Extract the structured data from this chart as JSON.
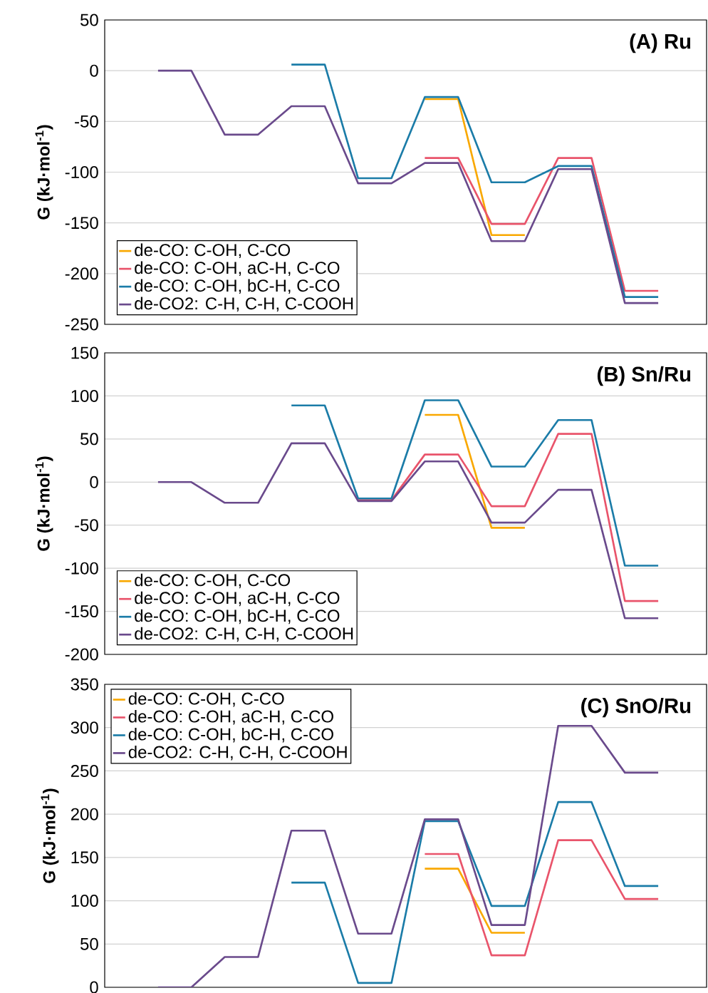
{
  "chart_data": [
    {
      "type": "line",
      "title": "(A) Ru",
      "ylabel": "G (kJ·mol$^{-1}$)",
      "categories": [
        null,
        null,
        null,
        null,
        null,
        null,
        null,
        null,
        null,
        null,
        null,
        null,
        null,
        null,
        null,
        null
      ],
      "series": [
        {
          "name": "de-CO: C-OH, C-CO",
          "color": "#f9a800",
          "values": [
            null,
            null,
            null,
            null,
            null,
            null,
            null,
            null,
            -28,
            -28,
            -162,
            -162,
            null,
            null,
            null,
            null
          ]
        },
        {
          "name": "de-CO: C-OH, aC-H, C-CO",
          "color": "#e9546b",
          "values": [
            null,
            null,
            null,
            null,
            null,
            null,
            null,
            null,
            -86,
            -86,
            -151,
            -151,
            -86,
            -86,
            -217,
            -217
          ]
        },
        {
          "name": "de-CO: C-OH, bC-H, C-CO",
          "color": "#1b7ca8",
          "values": [
            null,
            null,
            null,
            null,
            6,
            6,
            -106,
            -106,
            -26,
            -26,
            -110,
            -110,
            -94,
            -94,
            -223,
            -223
          ]
        },
        {
          "name": "de-CO2: C-H, C-H, C-COOH",
          "color": "#6a4a8c",
          "values": [
            0,
            0,
            -63,
            -63,
            -35,
            -35,
            -111,
            -111,
            -91,
            -91,
            -168,
            -168,
            -97,
            -97,
            -229,
            -229
          ]
        }
      ],
      "ylim": [
        -250,
        50
      ],
      "yticks": [
        -250,
        -200,
        -150,
        -100,
        -50,
        0,
        50
      ],
      "grid": "y",
      "legend": "bottom left",
      "tick_labels": "y"
    },
    {
      "type": "line",
      "title": "(B) Sn/Ru",
      "ylabel": "G (kJ·mol$^{-1}$)",
      "categories": [
        null,
        null,
        null,
        null,
        null,
        null,
        null,
        null,
        null,
        null,
        null,
        null,
        null,
        null,
        null,
        null
      ],
      "series": [
        {
          "name": "de-CO: C-OH, C-CO",
          "color": "#f9a800",
          "values": [
            null,
            null,
            null,
            null,
            null,
            null,
            null,
            null,
            78,
            78,
            -53,
            -53,
            null,
            null,
            null,
            null
          ]
        },
        {
          "name": "de-CO: C-OH, aC-H, C-CO",
          "color": "#e9546b",
          "values": [
            null,
            null,
            null,
            null,
            null,
            null,
            -21,
            -21,
            32,
            32,
            -28,
            -28,
            56,
            56,
            -138,
            -138
          ]
        },
        {
          "name": "de-CO: C-OH, bC-H, C-CO",
          "color": "#1b7ca8",
          "values": [
            null,
            null,
            null,
            null,
            89,
            89,
            -19,
            -19,
            95,
            95,
            18,
            18,
            72,
            72,
            -97,
            -97
          ]
        },
        {
          "name": "de-CO2: C-H, C-H, C-COOH",
          "color": "#6a4a8c",
          "values": [
            0,
            0,
            -24,
            -24,
            45,
            45,
            -22,
            -22,
            24,
            24,
            -47,
            -47,
            -9,
            -9,
            -158,
            -158
          ]
        }
      ],
      "ylim": [
        -200,
        150
      ],
      "yticks": [
        -200,
        -150,
        -100,
        -50,
        0,
        50,
        100,
        150
      ],
      "grid": "y",
      "legend": "bottom left",
      "tick_labels": "y"
    },
    {
      "type": "line",
      "title": "(C) SnO/Ru",
      "ylabel": "G (kJ·mol$^{-1}$)",
      "categories": [
        null,
        null,
        null,
        null,
        null,
        null,
        null,
        null,
        null,
        null,
        null,
        null,
        null,
        null,
        null,
        null
      ],
      "series": [
        {
          "name": "de-CO: C-OH, C-CO",
          "color": "#f9a800",
          "values": [
            null,
            null,
            null,
            null,
            null,
            null,
            null,
            null,
            137,
            137,
            63,
            63,
            null,
            null,
            null,
            null
          ]
        },
        {
          "name": "de-CO: C-OH, aC-H, C-CO",
          "color": "#e9546b",
          "values": [
            null,
            null,
            null,
            null,
            null,
            null,
            null,
            null,
            154,
            154,
            37,
            37,
            170,
            170,
            102,
            102
          ]
        },
        {
          "name": "de-CO: C-OH, bC-H, C-CO",
          "color": "#1b7ca8",
          "values": [
            null,
            null,
            null,
            null,
            121,
            121,
            5,
            5,
            192,
            192,
            94,
            94,
            214,
            214,
            117,
            117
          ]
        },
        {
          "name": "de-CO2: C-H, C-H, C-COOH",
          "color": "#6a4a8c",
          "values": [
            0,
            0,
            35,
            35,
            181,
            181,
            62,
            62,
            194,
            194,
            72,
            72,
            302,
            302,
            248,
            248
          ]
        }
      ],
      "ylim": [
        0,
        350
      ],
      "yticks": [
        0,
        50,
        100,
        150,
        200,
        250,
        300,
        350
      ],
      "grid": "y",
      "legend": "top left",
      "tick_labels": "y"
    }
  ]
}
